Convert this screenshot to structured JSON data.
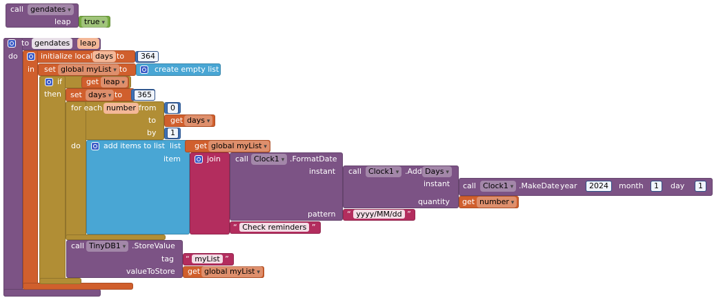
{
  "call_gendates": [
    "call",
    "gendates",
    "leap",
    "true"
  ],
  "procedure": [
    "to",
    "gendates",
    "leap",
    "do"
  ],
  "init_local": [
    "initialize local",
    "days",
    "to",
    "364",
    "in"
  ],
  "set_global": [
    "set",
    "global myList",
    "to",
    "create empty list"
  ],
  "if_block": [
    "if",
    "get",
    "leap",
    "then"
  ],
  "set_days": [
    "set",
    "days",
    "to",
    "365"
  ],
  "for_each": [
    "for each",
    "number",
    "from",
    "0",
    "to",
    "get",
    "days",
    "by",
    "1",
    "do"
  ],
  "add_items": [
    "add items to list",
    "list",
    "get",
    "global myList",
    "item"
  ],
  "join": [
    "join"
  ],
  "format_date": [
    "call",
    "Clock1",
    ".FormatDate",
    "instant",
    "pattern"
  ],
  "add_days": [
    "call",
    "Clock1",
    ".Add",
    "Days",
    "instant",
    "quantity"
  ],
  "make_date": [
    "call",
    "Clock1",
    ".MakeDate",
    "year",
    "2024",
    "month",
    "1",
    "day",
    "1"
  ],
  "get_number": [
    "get",
    "number"
  ],
  "pattern_text": [
    "yyyy/MM/dd"
  ],
  "check_text": [
    "Check reminders"
  ],
  "store_value": [
    "call",
    "TinyDB1",
    ".StoreValue",
    "tag",
    "myList",
    "valueToStore",
    "get",
    "global myList"
  ]
}
